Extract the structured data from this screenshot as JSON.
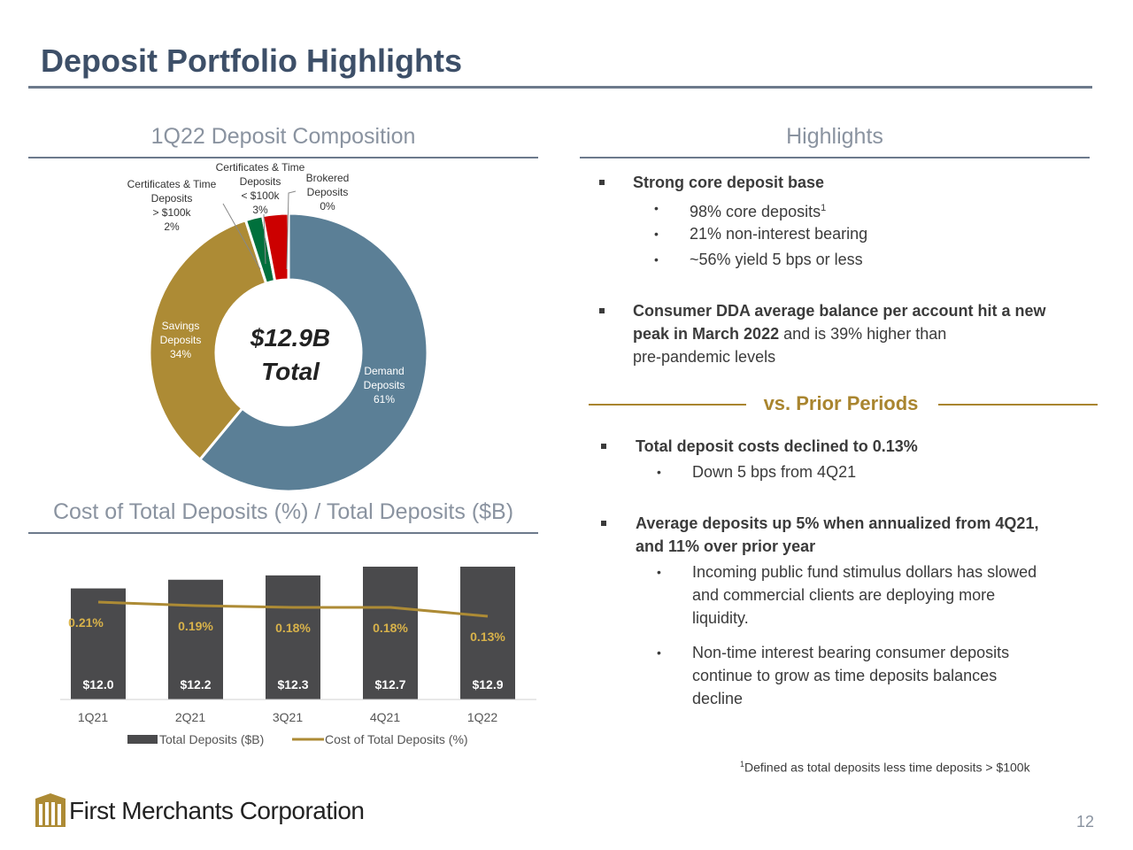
{
  "title": "Deposit Portfolio Highlights",
  "composition": {
    "heading": "1Q22 Deposit Composition",
    "center_value": "$12.9B",
    "center_label": "Total"
  },
  "cost_heading": "Cost of Total Deposits (%) / Total Deposits ($B)",
  "highlights": {
    "heading": "Highlights",
    "b1_title": "Strong core deposit base",
    "b1_s1": "98% core deposits",
    "b1_s1_sup": "1",
    "b1_s2": "21% non-interest bearing",
    "b1_s3": "~56% yield 5 bps or less",
    "b2_bold1": "Consumer DDA average balance per account hit a new",
    "b2_bold2": "peak in March 2022",
    "b2_rest1": " and is 39% higher than",
    "b2_rest2": "pre-pandemic levels",
    "vs_label": "vs. Prior Periods",
    "b3_title": "Total deposit costs declined to 0.13%",
    "b3_s1": "Down 5 bps from 4Q21",
    "b4_title1": "Average deposits up 5% when annualized from 4Q21,",
    "b4_title2": "and 11% over prior year",
    "b4_s1_l1": "Incoming public fund stimulus dollars has slowed",
    "b4_s1_l2": "and commercial clients are deploying more",
    "b4_s1_l3": "liquidity.",
    "b4_s2_l1": "Non-time interest bearing consumer deposits",
    "b4_s2_l2": "continue to grow as time deposits balances",
    "b4_s2_l3": "decline"
  },
  "footnote_sup": "1",
  "footnote": "Defined as total deposits less time deposits > $100k",
  "logo_text": "First Merchants Corporation",
  "page_number": "12",
  "colors": {
    "demand": "#5b7f96",
    "savings": "#ad8b35",
    "cert_gt": "#00703c",
    "cert_lt": "#cc0000",
    "brokered": "#cc0000",
    "bar": "#4a4a4c",
    "line": "#ad8b35",
    "rate_label": "#d8b24a"
  },
  "chart_data": [
    {
      "type": "pie",
      "title": "1Q22 Deposit Composition",
      "slices": [
        {
          "name": "Demand Deposits",
          "label_lines": [
            "Demand",
            "Deposits"
          ],
          "value": 61,
          "value_label": "61%"
        },
        {
          "name": "Savings Deposits",
          "label_lines": [
            "Savings",
            "Deposits"
          ],
          "value": 34,
          "value_label": "34%"
        },
        {
          "name": "Certificates & Time Deposits > $100k",
          "label_lines": [
            "Certificates & Time",
            "Deposits",
            "> $100k"
          ],
          "value": 2,
          "value_label": "2%"
        },
        {
          "name": "Certificates & Time Deposits < $100k",
          "label_lines": [
            "Certificates & Time",
            "Deposits",
            "< $100k"
          ],
          "value": 3,
          "value_label": "3%"
        },
        {
          "name": "Brokered Deposits",
          "label_lines": [
            "Brokered",
            "Deposits"
          ],
          "value": 0,
          "value_label": "0%"
        }
      ]
    },
    {
      "type": "bar",
      "title": "Cost of Total Deposits (%) / Total Deposits ($B)",
      "categories": [
        "1Q21",
        "2Q21",
        "3Q21",
        "4Q21",
        "1Q22"
      ],
      "series": [
        {
          "name": "Total Deposits ($B)",
          "kind": "bar",
          "values": [
            12.0,
            12.2,
            12.3,
            12.7,
            12.9
          ],
          "labels": [
            "$12.0",
            "$12.2",
            "$12.3",
            "$12.7",
            "$12.9"
          ]
        },
        {
          "name": "Cost of Total Deposits (%)",
          "kind": "line",
          "values": [
            0.21,
            0.19,
            0.18,
            0.18,
            0.13
          ],
          "labels": [
            "0.21%",
            "0.19%",
            "0.18%",
            "0.18%",
            "0.13%"
          ]
        }
      ]
    }
  ]
}
